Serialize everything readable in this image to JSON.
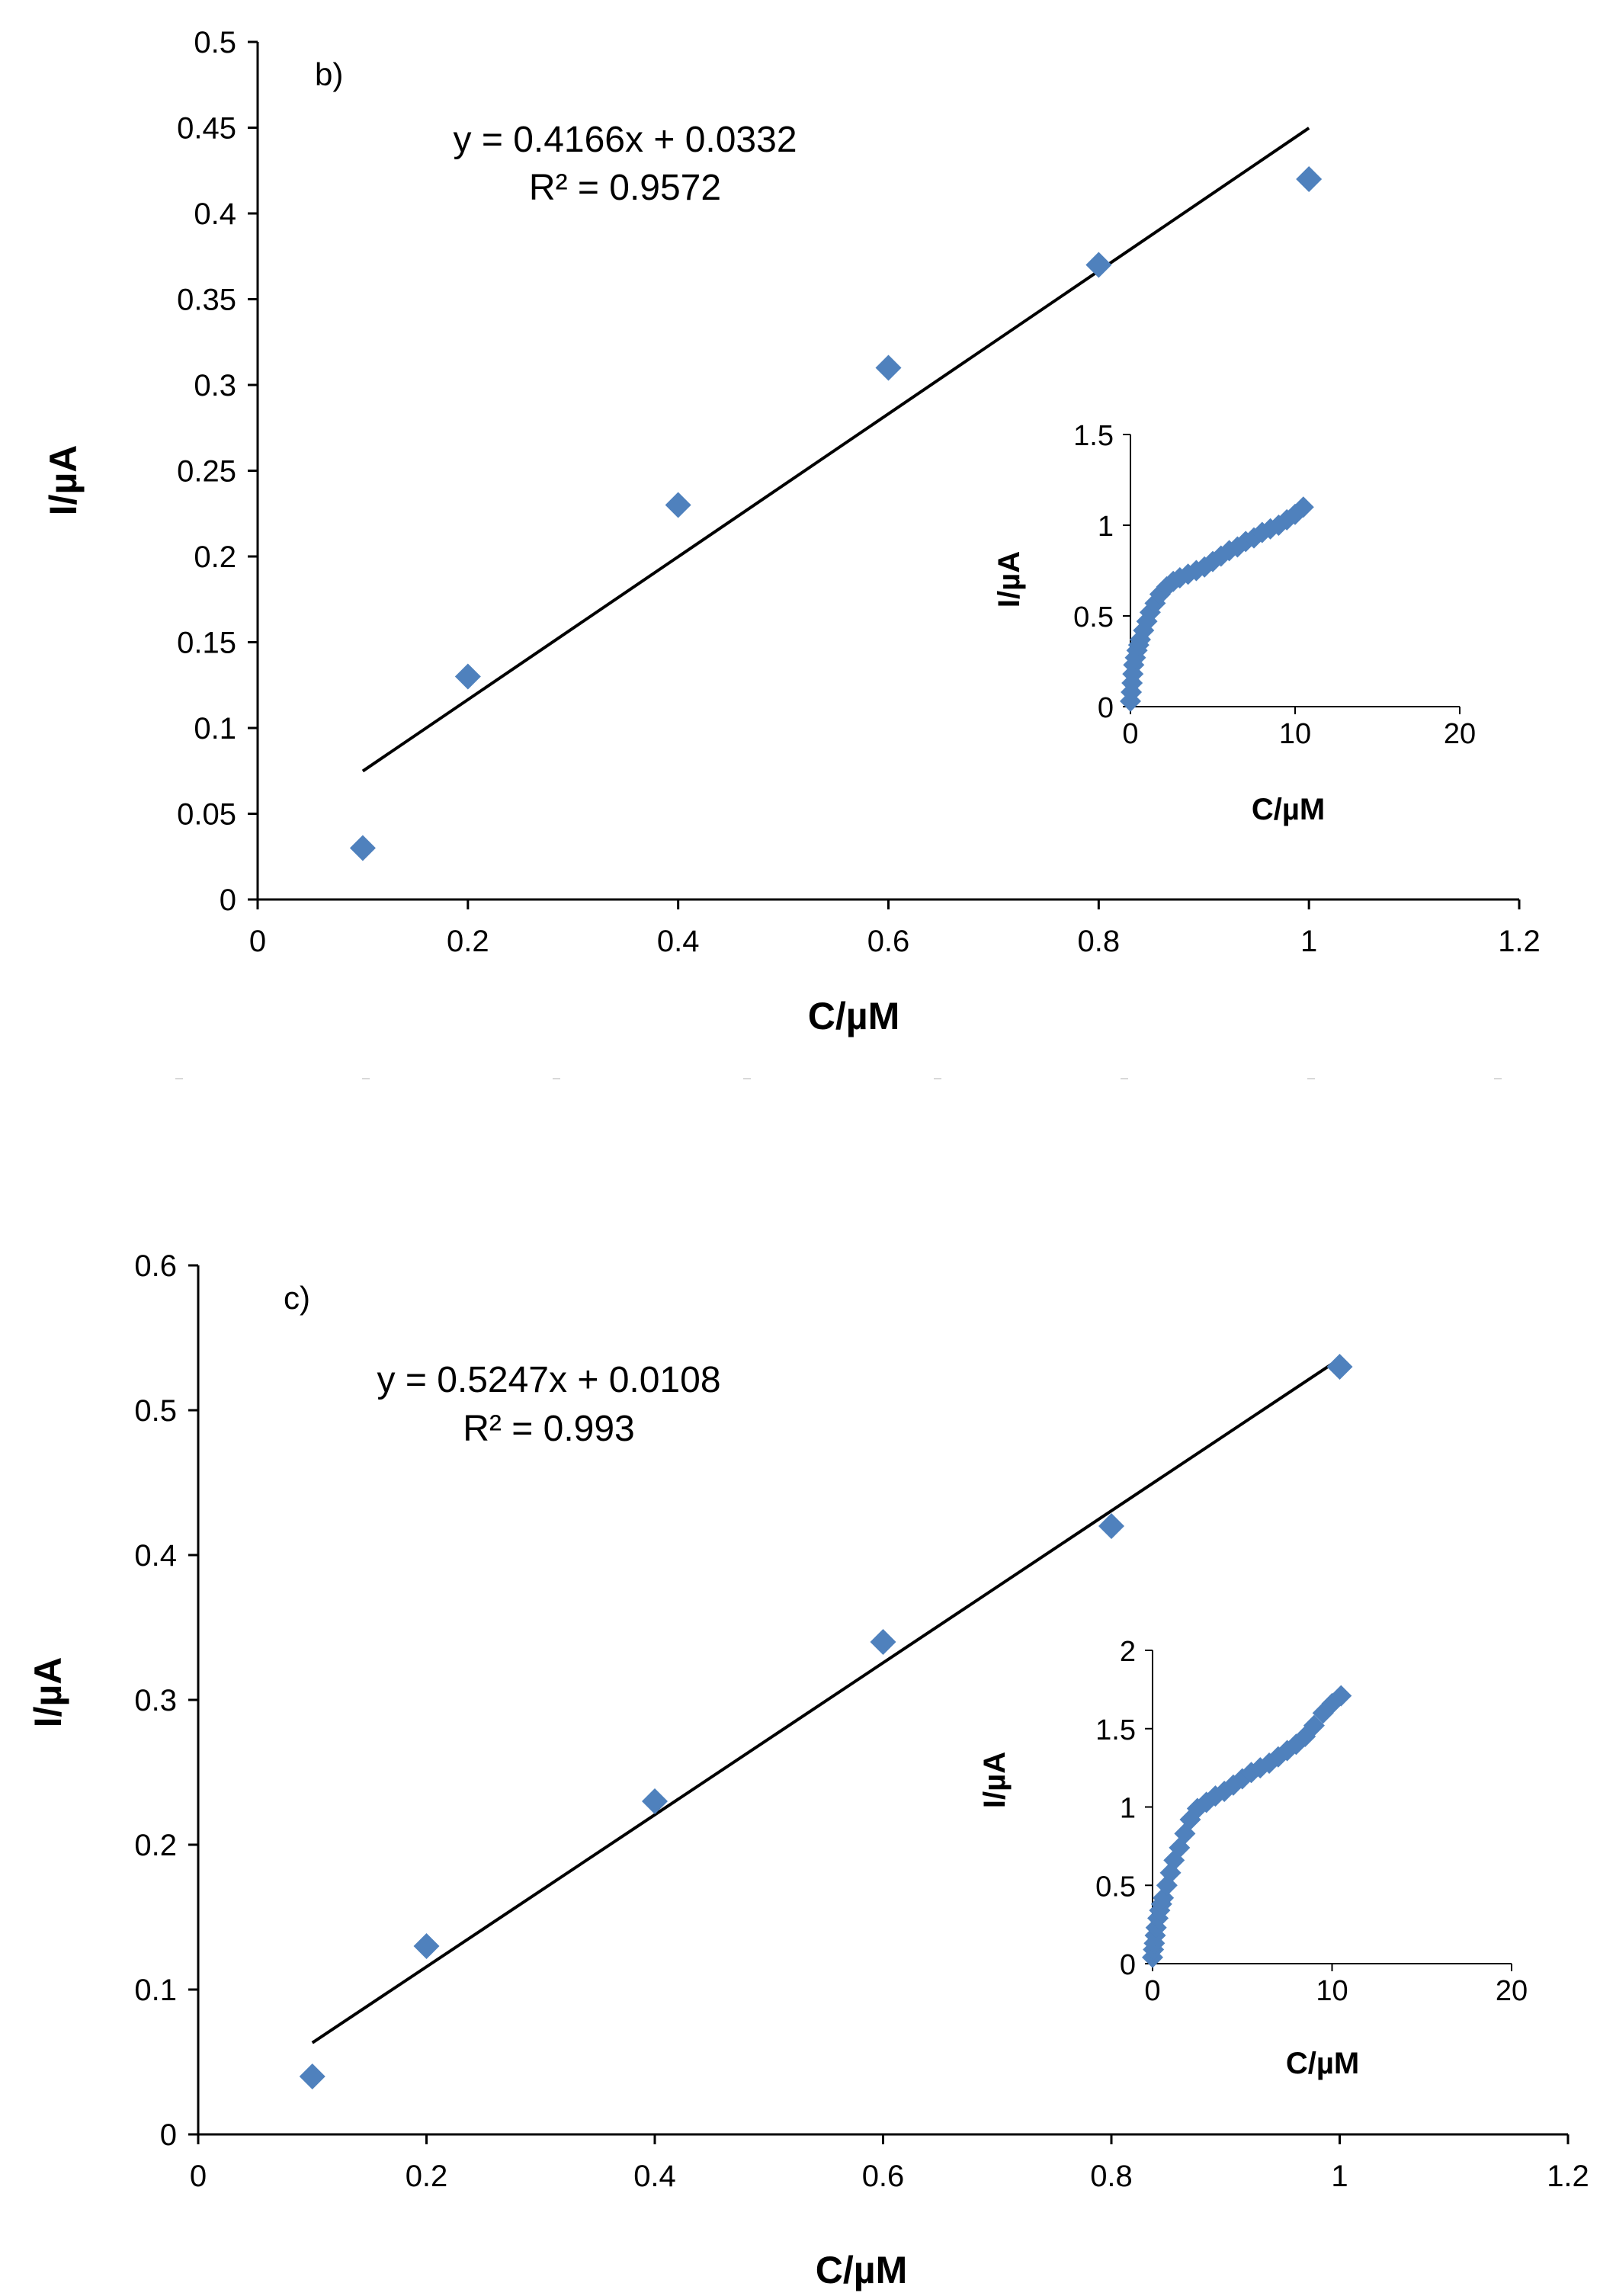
{
  "chart_data": [
    {
      "type": "scatter",
      "panel_label": "b)",
      "xlabel": "C/µM",
      "ylabel": "I/µA",
      "xlim": [
        0,
        1.2
      ],
      "ylim": [
        0,
        0.5
      ],
      "xticks": [
        "0",
        "0.2",
        "0.4",
        "0.6",
        "0.8",
        "1",
        "1.2"
      ],
      "yticks": [
        "0",
        "0.05",
        "0.1",
        "0.15",
        "0.2",
        "0.25",
        "0.3",
        "0.35",
        "0.4",
        "0.45",
        "0.5"
      ],
      "grid": false,
      "marker_color": "#4F81BD",
      "x": [
        0.1,
        0.2,
        0.4,
        0.6,
        0.8,
        1.0
      ],
      "y": [
        0.03,
        0.13,
        0.23,
        0.31,
        0.37,
        0.42
      ],
      "trendline": {
        "slope": 0.4166,
        "intercept": 0.0332,
        "x_range": [
          0.1,
          1.0
        ]
      },
      "equation": "y = 0.4166x + 0.0332",
      "r_squared": "R² = 0.9572",
      "inset": {
        "xlabel": "C/µM",
        "ylabel": "I/µA",
        "xlim": [
          0,
          20
        ],
        "ylim": [
          0,
          1.5
        ],
        "xticks": [
          "0",
          "10",
          "20"
        ],
        "yticks": [
          "0",
          "0.5",
          "1",
          "1.5"
        ],
        "x": [
          0.0,
          0.05,
          0.1,
          0.15,
          0.2,
          0.3,
          0.4,
          0.5,
          0.6,
          0.8,
          1.0,
          1.2,
          1.5,
          1.8,
          2.2,
          2.6,
          3.0,
          3.5,
          4.0,
          4.5,
          5.0,
          5.5,
          6.0,
          6.5,
          7.0,
          7.5,
          8.0,
          8.5,
          9.0,
          9.5,
          10.0,
          10.5
        ],
        "y": [
          0.03,
          0.08,
          0.13,
          0.18,
          0.23,
          0.27,
          0.31,
          0.34,
          0.37,
          0.42,
          0.47,
          0.52,
          0.57,
          0.62,
          0.66,
          0.69,
          0.71,
          0.73,
          0.75,
          0.77,
          0.8,
          0.83,
          0.86,
          0.88,
          0.91,
          0.93,
          0.96,
          0.98,
          1.0,
          1.03,
          1.06,
          1.1
        ]
      }
    },
    {
      "type": "scatter",
      "panel_label": "c)",
      "xlabel": "C/µM",
      "ylabel": "I/µA",
      "xlim": [
        0,
        1.2
      ],
      "ylim": [
        0,
        0.6
      ],
      "xticks": [
        "0",
        "0.2",
        "0.4",
        "0.6",
        "0.8",
        "1",
        "1.2"
      ],
      "yticks": [
        "0",
        "0.1",
        "0.2",
        "0.3",
        "0.4",
        "0.5",
        "0.6"
      ],
      "grid": false,
      "marker_color": "#4F81BD",
      "x": [
        0.1,
        0.2,
        0.4,
        0.6,
        0.8,
        1.0
      ],
      "y": [
        0.04,
        0.13,
        0.23,
        0.34,
        0.42,
        0.53
      ],
      "trendline": {
        "slope": 0.5247,
        "intercept": 0.0108,
        "x_range": [
          0.1,
          1.0
        ]
      },
      "equation": "y = 0.5247x + 0.0108",
      "r_squared": "R² = 0.993",
      "inset": {
        "xlabel": "C/µM",
        "ylabel": "I/µA",
        "xlim": [
          0,
          20
        ],
        "ylim": [
          0,
          2
        ],
        "xticks": [
          "0",
          "10",
          "20"
        ],
        "yticks": [
          "0",
          "0.5",
          "1",
          "1.5",
          "2"
        ],
        "x": [
          0.0,
          0.05,
          0.1,
          0.15,
          0.2,
          0.3,
          0.4,
          0.5,
          0.6,
          0.8,
          1.0,
          1.2,
          1.5,
          1.8,
          2.1,
          2.5,
          3.0,
          3.5,
          4.0,
          4.5,
          5.0,
          5.5,
          6.0,
          6.5,
          7.0,
          7.5,
          8.0,
          8.5,
          9.0,
          9.5,
          10.0,
          10.5
        ],
        "y": [
          0.04,
          0.09,
          0.13,
          0.18,
          0.23,
          0.29,
          0.34,
          0.38,
          0.42,
          0.5,
          0.58,
          0.66,
          0.74,
          0.83,
          0.92,
          0.99,
          1.03,
          1.07,
          1.1,
          1.14,
          1.18,
          1.22,
          1.25,
          1.28,
          1.32,
          1.36,
          1.4,
          1.45,
          1.52,
          1.6,
          1.66,
          1.71
        ]
      }
    }
  ]
}
